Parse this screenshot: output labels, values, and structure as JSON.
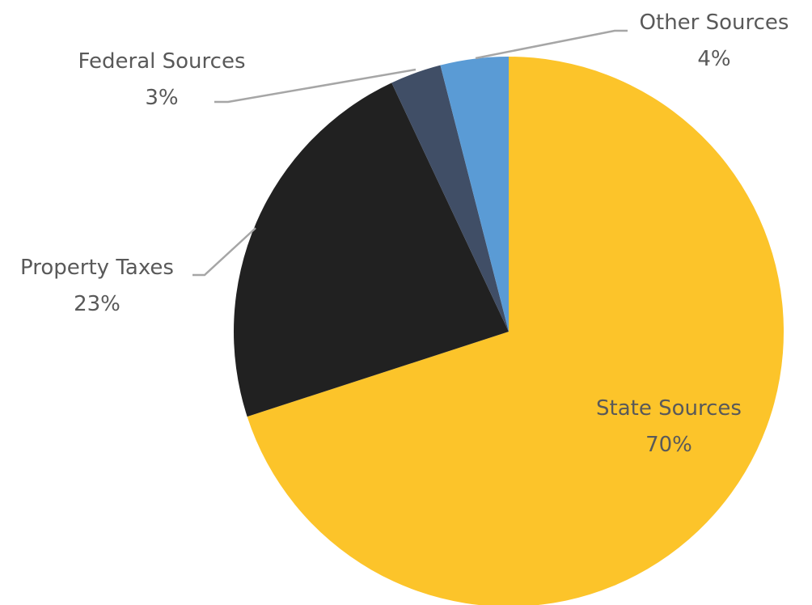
{
  "chart_data": {
    "type": "pie",
    "title": "",
    "start_angle_deg": 0,
    "direction": "clockwise",
    "slices": [
      {
        "name": "State Sources",
        "value": 70,
        "label": "70%",
        "color": "#fcc42a"
      },
      {
        "name": "Property Taxes",
        "value": 23,
        "label": "23%",
        "color": "#212121"
      },
      {
        "name": "Federal Sources",
        "value": 3,
        "label": "3%",
        "color": "#404e66"
      },
      {
        "name": "Other Sources",
        "value": 4,
        "label": "4%",
        "color": "#5a9bd5"
      }
    ],
    "data_labels": "category name and percentage",
    "legend": "none"
  }
}
